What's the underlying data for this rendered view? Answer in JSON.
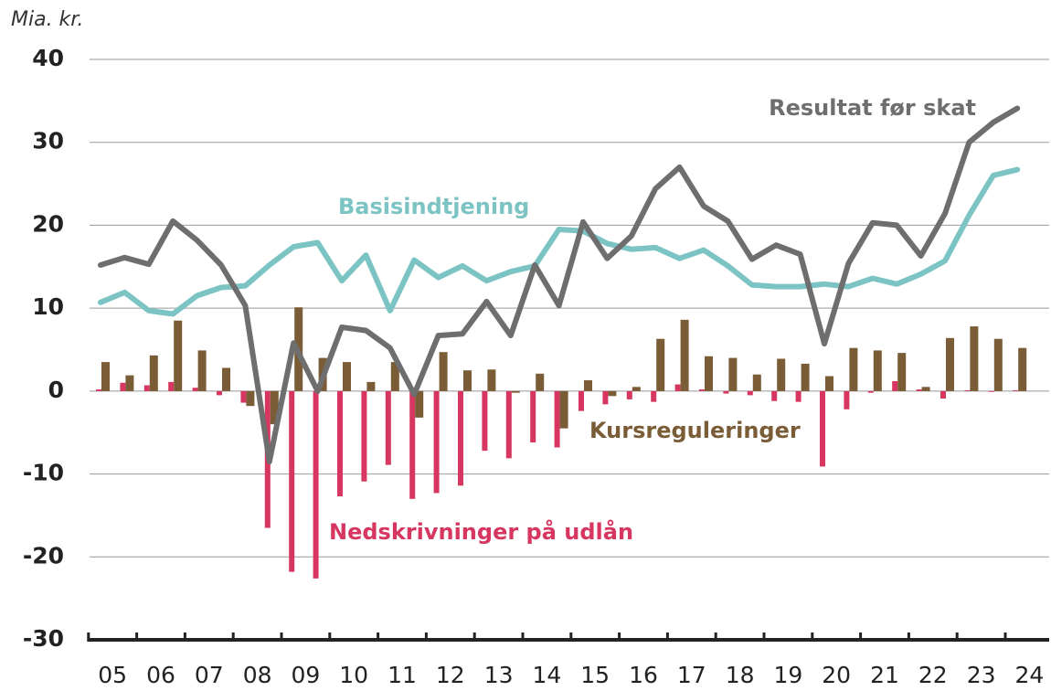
{
  "chart_data": {
    "type": "combo",
    "y_label": "Mia. kr.",
    "categories": [
      "05",
      null,
      "06",
      null,
      "07",
      null,
      "08",
      null,
      "09",
      null,
      "10",
      null,
      "11",
      null,
      "12",
      null,
      "13",
      null,
      "14",
      null,
      "15",
      null,
      "16",
      null,
      "17",
      null,
      "18",
      null,
      "19",
      null,
      "20",
      null,
      "21",
      null,
      "22",
      null,
      "23",
      null,
      "24"
    ],
    "ylim": [
      -30,
      40
    ],
    "yticks": [
      -30,
      -20,
      -10,
      0,
      10,
      20,
      30,
      40
    ],
    "grid": true,
    "series": [
      {
        "name": "Nedskrivninger på udlån",
        "type": "bar",
        "color": "#d6365f",
        "values": [
          0.2,
          1.0,
          0.7,
          1.1,
          0.4,
          -0.5,
          -1.4,
          -16.5,
          -21.8,
          -22.6,
          -12.7,
          -10.9,
          -8.9,
          -13.0,
          -12.3,
          -11.4,
          -7.2,
          -8.1,
          -6.2,
          -6.8,
          -2.4,
          -1.6,
          -1.0,
          -1.3,
          0.8,
          0.2,
          -0.3,
          -0.5,
          -1.2,
          -1.3,
          -9.1,
          -2.2,
          -0.2,
          1.2,
          0.2,
          -0.9,
          0.1,
          -0.1,
          0.1
        ]
      },
      {
        "name": "Kursreguleringer",
        "type": "bar",
        "color": "#7a5c37",
        "values": [
          3.5,
          1.9,
          4.3,
          8.5,
          4.9,
          2.8,
          -1.8,
          -4.0,
          10.1,
          4.0,
          3.5,
          1.1,
          3.5,
          -3.2,
          4.7,
          2.5,
          2.6,
          -0.2,
          2.1,
          -4.5,
          1.3,
          -0.6,
          0.5,
          6.3,
          8.6,
          4.2,
          4.0,
          2.0,
          3.9,
          3.3,
          1.8,
          5.2,
          4.9,
          4.6,
          0.5,
          6.4,
          7.8,
          6.3,
          5.2
        ]
      },
      {
        "name": "Basisindtjening",
        "type": "line",
        "color": "#7cc4c4",
        "values": [
          10.7,
          11.9,
          9.7,
          9.3,
          11.5,
          12.5,
          12.7,
          15.2,
          17.4,
          17.9,
          13.3,
          16.4,
          9.7,
          15.8,
          13.7,
          15.1,
          13.3,
          14.4,
          15.1,
          19.5,
          19.3,
          17.8,
          17.1,
          17.3,
          16.0,
          17.0,
          15.1,
          12.8,
          12.6,
          12.6,
          12.9,
          12.6,
          13.6,
          12.9,
          14.1,
          15.7,
          21.2,
          26.0,
          26.7
        ]
      },
      {
        "name": "Resultat før skat",
        "type": "line",
        "color": "#6e6e6e",
        "values": [
          15.2,
          16.1,
          15.3,
          20.5,
          18.2,
          15.2,
          10.3,
          -8.5,
          5.8,
          0,
          7.7,
          7.3,
          5.2,
          -0.4,
          6.7,
          6.9,
          10.8,
          6.7,
          15.2,
          10.3,
          20.4,
          16.0,
          18.7,
          24.4,
          27.0,
          22.3,
          20.5,
          15.9,
          17.6,
          16.5,
          5.7,
          15.4,
          20.3,
          20.0,
          16.3,
          21.4,
          30.0,
          32.4,
          34.1
        ]
      }
    ]
  }
}
